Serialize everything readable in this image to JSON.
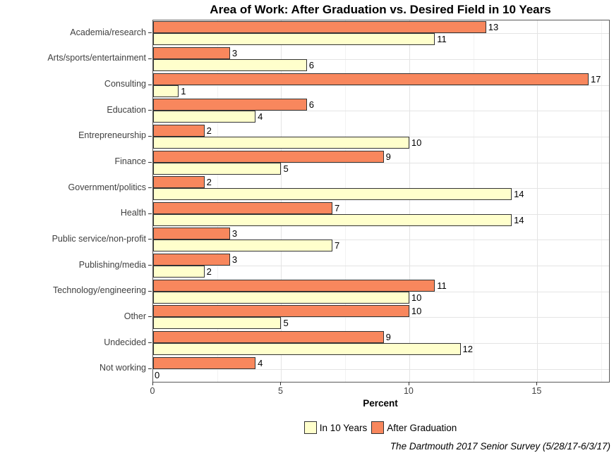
{
  "chart_data": {
    "type": "bar",
    "orientation": "horizontal",
    "title": "Area of Work: After Graduation vs. Desired Field in 10 Years",
    "xlabel": "Percent",
    "x_ticks": [
      0,
      5,
      10,
      15
    ],
    "x_max": 17.8,
    "grid": "vertical major+minor and horizontal major, light gray on white",
    "categories": [
      "Academia/research",
      "Arts/sports/entertainment",
      "Consulting",
      "Education",
      "Entrepreneurship",
      "Finance",
      "Government/politics",
      "Health",
      "Public service/non-profit",
      "Publishing/media",
      "Technology/engineering",
      "Other",
      "Undecided",
      "Not working"
    ],
    "series": [
      {
        "name": "After Graduation",
        "color": "#F8875D",
        "values": [
          13,
          3,
          17,
          6,
          2,
          9,
          2,
          7,
          3,
          3,
          11,
          10,
          9,
          4
        ]
      },
      {
        "name": "In 10 Years",
        "color": "#FFFFCC",
        "values": [
          11,
          6,
          1,
          4,
          10,
          5,
          14,
          14,
          7,
          2,
          10,
          5,
          12,
          0
        ]
      }
    ],
    "legend": {
      "position": "bottom",
      "entries": [
        "In 10 Years",
        "After Graduation"
      ]
    },
    "caption": "The Dartmouth 2017 Senior Survey (5/28/17-6/3/17)"
  },
  "colors": {
    "after_graduation": "#F8875D",
    "in_10_years": "#FFFFCC",
    "bar_border": "#333333",
    "panel_border": "#595959",
    "grid_major": "#E4E4E4",
    "grid_minor": "#F2F2F2",
    "axis_text": "#404040"
  }
}
